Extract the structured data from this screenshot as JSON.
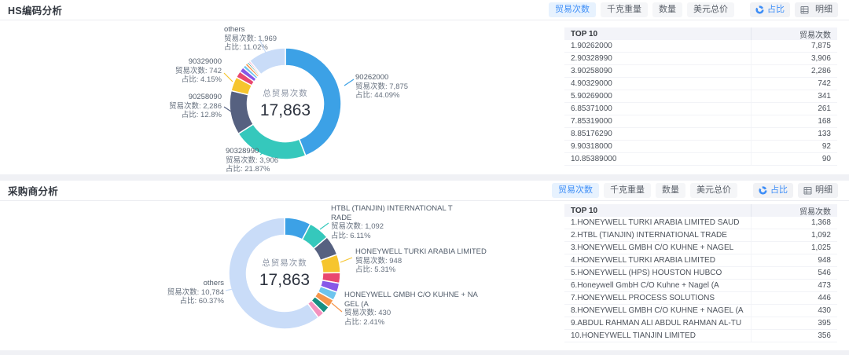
{
  "sections": [
    {
      "title": "HS编码分析",
      "toolbar": {
        "metric_buttons": [
          "贸易次数",
          "千克重量",
          "数量",
          "美元总价"
        ],
        "active_metric": "贸易次数",
        "ratio_button": "占比",
        "detail_button": "明细"
      },
      "table": {
        "rank_header": "TOP 10",
        "value_header": "贸易次数",
        "rows": [
          {
            "label": "1.90262000",
            "value": "7,875"
          },
          {
            "label": "2.90328990",
            "value": "3,906"
          },
          {
            "label": "3.90258090",
            "value": "2,286"
          },
          {
            "label": "4.90329000",
            "value": "742"
          },
          {
            "label": "5.90269000",
            "value": "341"
          },
          {
            "label": "6.85371000",
            "value": "261"
          },
          {
            "label": "7.85319000",
            "value": "168"
          },
          {
            "label": "8.85176290",
            "value": "133"
          },
          {
            "label": "9.90318000",
            "value": "92"
          },
          {
            "label": "10.85389000",
            "value": "90"
          }
        ]
      }
    },
    {
      "title": "采购商分析",
      "toolbar": {
        "metric_buttons": [
          "贸易次数",
          "千克重量",
          "数量",
          "美元总价"
        ],
        "active_metric": "贸易次数",
        "ratio_button": "占比",
        "detail_button": "明细"
      },
      "table": {
        "rank_header": "TOP 10",
        "value_header": "贸易次数",
        "rows": [
          {
            "label": "1.HONEYWELL TURKI ARABIA LIMITED SAUD",
            "value": "1,368"
          },
          {
            "label": "2.HTBL (TIANJIN) INTERNATIONAL TRADE",
            "value": "1,092"
          },
          {
            "label": "3.HONEYWELL GMBH C/O KUHNE + NAGEL",
            "value": "1,025"
          },
          {
            "label": "4.HONEYWELL TURKI ARABIA LIMITED",
            "value": "948"
          },
          {
            "label": "5.HONEYWELL (HPS) HOUSTON HUBCO",
            "value": "546"
          },
          {
            "label": "6.Honeywell GmbH C/O Kuhne + Nagel (A",
            "value": "473"
          },
          {
            "label": "7.HONEYWELL PROCESS SOLUTIONS",
            "value": "446"
          },
          {
            "label": "8.HONEYWELL GMBH C/O KUHNE + NAGEL (A",
            "value": "430"
          },
          {
            "label": "9.ABDUL RAHMAN ALI ABDUL RAHMAN AL-TU",
            "value": "395"
          },
          {
            "label": "10.HONEYWELL TIANJIN LIMITED",
            "value": "356"
          }
        ]
      }
    }
  ],
  "chart_data": [
    {
      "id": "hs-code-donut",
      "type": "pie",
      "title": "HS编码分析 - 贸易次数占比",
      "center_label": "总贸易次数",
      "center_value": "17,863",
      "total": 17863,
      "slices": [
        {
          "label": "90262000",
          "value": 7875,
          "pct": "44.09%",
          "color": "#3CA1E6"
        },
        {
          "label": "90328990",
          "value": 3906,
          "pct": "21.87%",
          "color": "#35C8BC"
        },
        {
          "label": "90258090",
          "value": 2286,
          "pct": "12.8%",
          "color": "#566180"
        },
        {
          "label": "90329000",
          "value": 742,
          "pct": "4.15%",
          "color": "#F6C52E"
        },
        {
          "label": "90269000",
          "value": 341,
          "color": "#E9486F"
        },
        {
          "label": "85371000",
          "value": 261,
          "color": "#8758E8"
        },
        {
          "label": "85319000",
          "value": 168,
          "color": "#6EC4EE"
        },
        {
          "label": "85176290",
          "value": 133,
          "color": "#F6954B"
        },
        {
          "label": "90318000",
          "value": 92,
          "color": "#168F82"
        },
        {
          "label": "85389000",
          "value": 90,
          "color": "#F391BE"
        },
        {
          "label": "others",
          "value": 1969,
          "pct": "11.02%",
          "color": "#C9DCF8"
        }
      ],
      "callouts": [
        {
          "name": "others",
          "count": "贸易次数: 1,969",
          "pct": "占比: 11.02%"
        },
        {
          "name": "90262000",
          "count": "贸易次数: 7,875",
          "pct": "占比: 44.09%"
        },
        {
          "name": "90329000",
          "count": "贸易次数: 742",
          "pct": "占比: 4.15%"
        },
        {
          "name": "90258090",
          "count": "贸易次数: 2,286",
          "pct": "占比: 12.8%"
        },
        {
          "name": "90328990",
          "count": "贸易次数: 3,906",
          "pct": "占比: 21.87%"
        }
      ]
    },
    {
      "id": "buyer-donut",
      "type": "pie",
      "title": "采购商分析 - 贸易次数占比",
      "center_label": "总贸易次数",
      "center_value": "17,863",
      "total": 17863,
      "slices": [
        {
          "label": "HONEYWELL TURKI ARABIA LIMITED SAUD",
          "value": 1368,
          "color": "#3CA1E6"
        },
        {
          "label": "HTBL (TIANJIN) INTERNATIONAL TRADE",
          "value": 1092,
          "pct": "6.11%",
          "color": "#35C8BC"
        },
        {
          "label": "HONEYWELL GMBH C/O KUHNE + NAGEL",
          "value": 1025,
          "color": "#566180"
        },
        {
          "label": "HONEYWELL TURKI ARABIA LIMITED",
          "value": 948,
          "pct": "5.31%",
          "color": "#F6C52E"
        },
        {
          "label": "HONEYWELL (HPS) HOUSTON HUBCO",
          "value": 546,
          "color": "#E9486F"
        },
        {
          "label": "Honeywell GmbH C/O Kuhne + Nagel (A",
          "value": 473,
          "color": "#8758E8"
        },
        {
          "label": "HONEYWELL PROCESS SOLUTIONS",
          "value": 446,
          "color": "#6EC4EE"
        },
        {
          "label": "HONEYWELL GMBH C/O KUHNE + NAGEL (A",
          "value": 430,
          "pct": "2.41%",
          "color": "#F6954B"
        },
        {
          "label": "ABDUL RAHMAN ALI ABDUL RAHMAN AL-TU",
          "value": 395,
          "color": "#168F82"
        },
        {
          "label": "HONEYWELL TIANJIN LIMITED",
          "value": 356,
          "color": "#F391BE"
        },
        {
          "label": "others",
          "value": 10784,
          "pct": "60.37%",
          "color": "#C9DCF8"
        }
      ],
      "callouts": [
        {
          "name": "HTBL (TIANJIN) INTERNATIONAL TRADE",
          "count": "贸易次数: 1,092",
          "pct": "占比: 6.11%"
        },
        {
          "name": "HONEYWELL TURKI ARABIA LIMITED",
          "count": "贸易次数: 948",
          "pct": "占比: 5.31%"
        },
        {
          "name": "HONEYWELL GMBH C/O KUHNE + NAGEL (A",
          "count": "贸易次数: 430",
          "pct": "占比: 2.41%"
        },
        {
          "name": "others",
          "count": "贸易次数: 10,784",
          "pct": "占比: 60.37%"
        }
      ]
    }
  ]
}
